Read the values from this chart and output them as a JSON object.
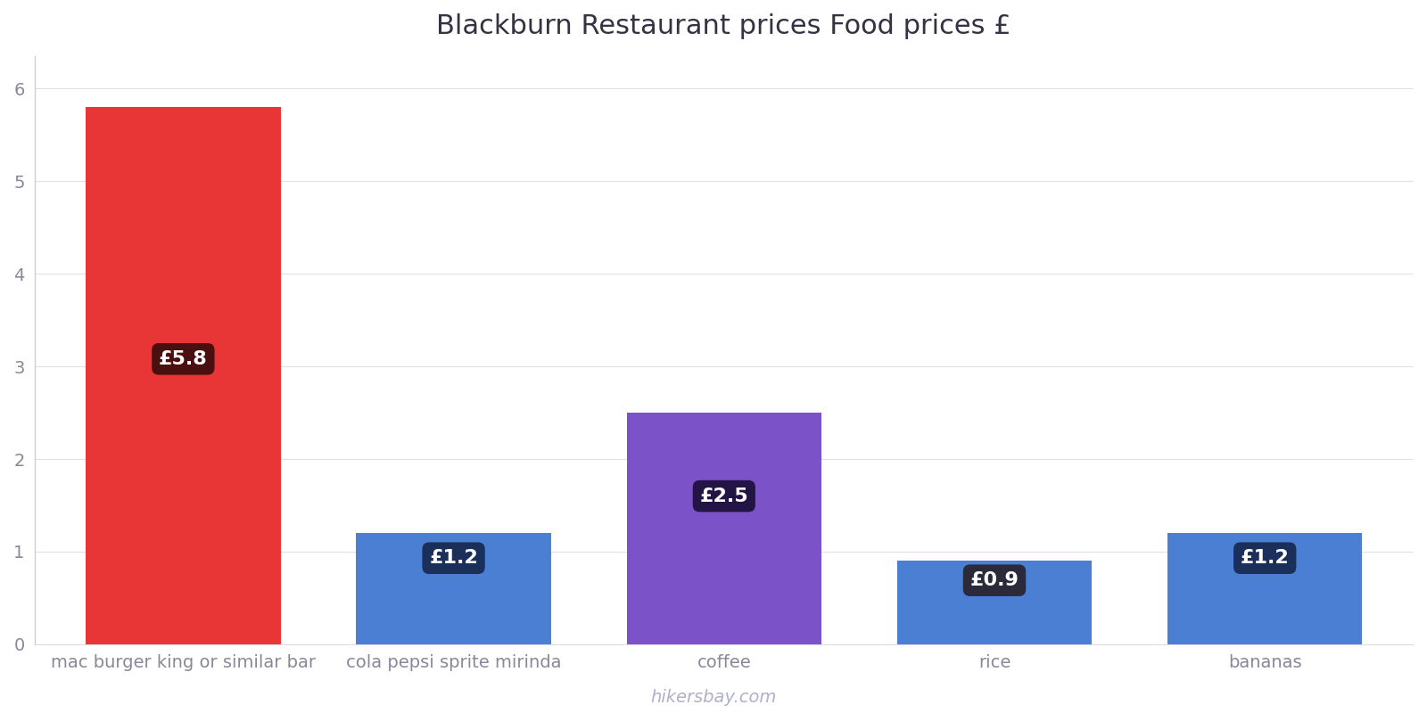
{
  "title": "Blackburn Restaurant prices Food prices £",
  "categories": [
    "mac burger king or similar bar",
    "cola pepsi sprite mirinda",
    "coffee",
    "rice",
    "bananas"
  ],
  "values": [
    5.8,
    1.2,
    2.5,
    0.9,
    1.2
  ],
  "bar_colors": [
    "#e83535",
    "#4a7fd4",
    "#7b52c8",
    "#4a7fd4",
    "#4a7fd4"
  ],
  "label_bg_colors": [
    "#4a1010",
    "#1a2f5a",
    "#221545",
    "#2a2a3a",
    "#1a2f5a"
  ],
  "label_texts": [
    "£5.8",
    "£1.2",
    "£2.5",
    "£0.9",
    "£1.2"
  ],
  "label_y_positions": [
    3.08,
    0.93,
    1.6,
    0.69,
    0.93
  ],
  "ylim": [
    0,
    6.35
  ],
  "yticks": [
    0,
    1,
    2,
    3,
    4,
    5,
    6
  ],
  "background_color": "#ffffff",
  "grid_color": "#e0e0e8",
  "title_fontsize": 22,
  "tick_label_fontsize": 14,
  "label_fontsize": 16,
  "bar_width": 0.72,
  "watermark": "hikersbay.com",
  "watermark_color": "#b0b0c8",
  "watermark_fontsize": 14,
  "spine_color": "#ccccdd"
}
